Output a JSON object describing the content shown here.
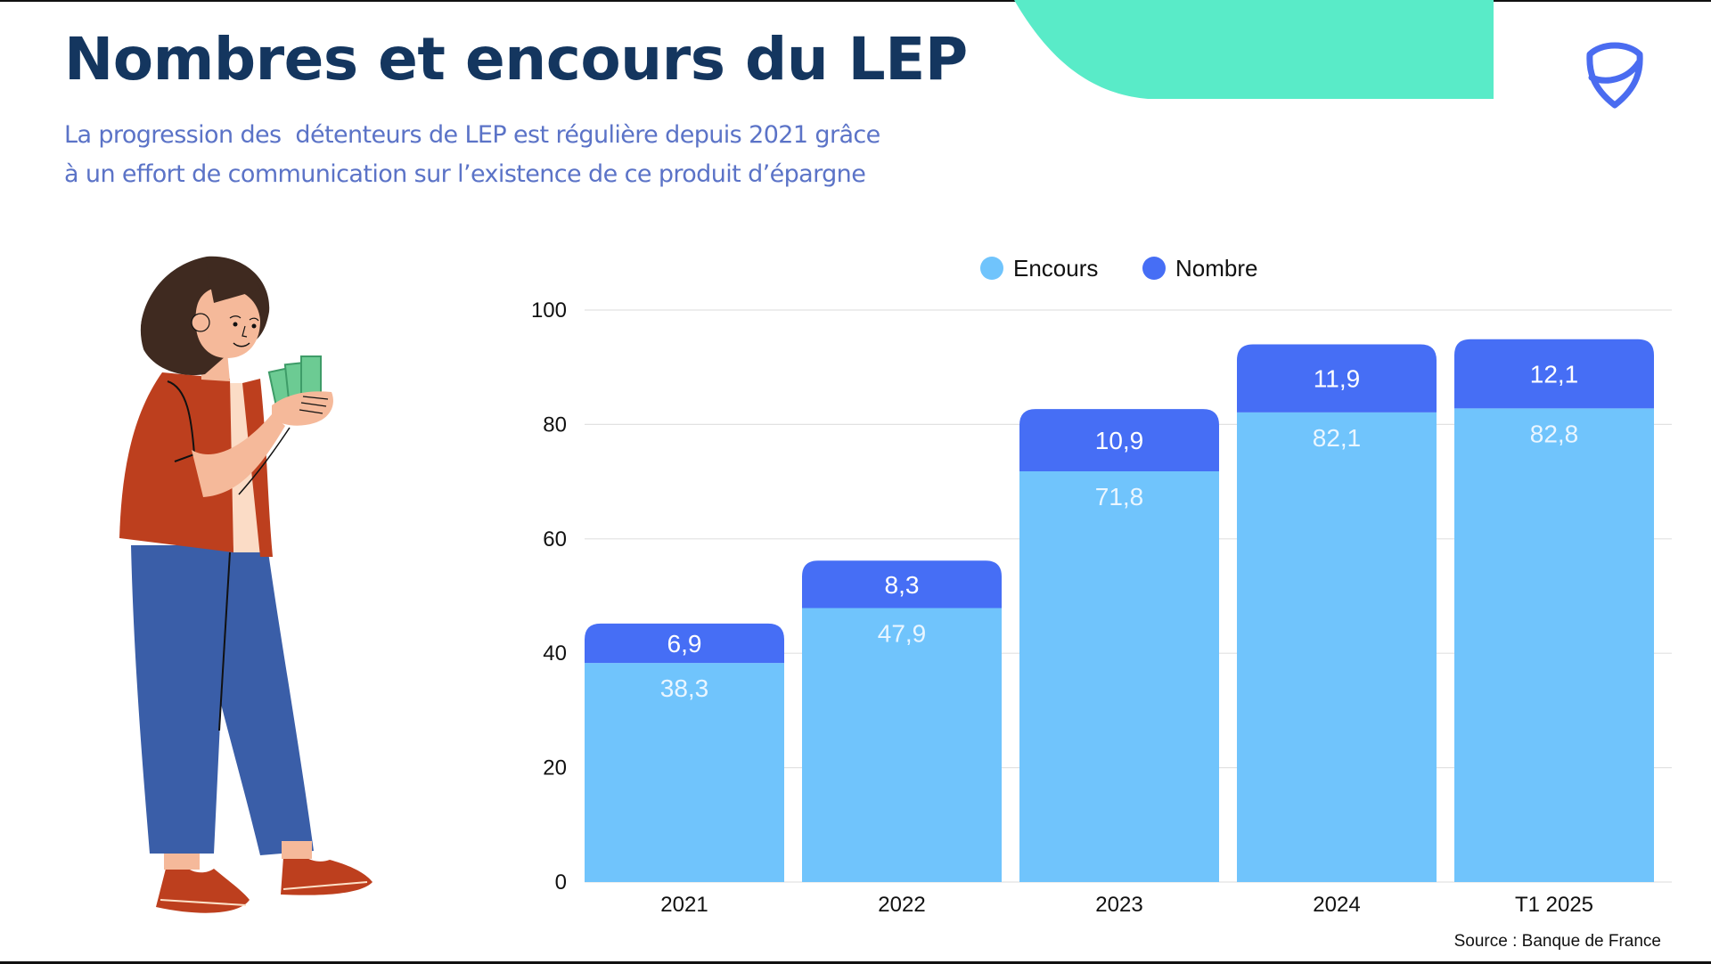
{
  "header": {
    "title": "Nombres et encours du LEP",
    "subtitle_lines": [
      "La progression des  détenteurs de LEP est régulière depuis 2021 grâce",
      "à un effort de communication sur l’existence de ce produit d’épargne"
    ],
    "logo_icon": "shield-icon"
  },
  "colors": {
    "title": "#14365f",
    "subtitle": "#5b73c7",
    "teal_accent": "#59ebc8",
    "encours": "#70c4fc",
    "nombre": "#466ef5",
    "grid": "#e2e2e2"
  },
  "illustration": {
    "description": "woman holding banknotes",
    "icon": "person-with-money-illustration"
  },
  "chart_data": {
    "type": "bar",
    "stacked": true,
    "title": "",
    "xlabel": "",
    "ylabel": "",
    "categories": [
      "2021",
      "2022",
      "2023",
      "2024",
      "T1 2025"
    ],
    "series": [
      {
        "name": "Encours",
        "values": [
          38.3,
          47.9,
          71.8,
          82.1,
          82.8
        ],
        "labels": [
          "38,3",
          "47,9",
          "71,8",
          "82,1",
          "82,8"
        ]
      },
      {
        "name": "Nombre",
        "values": [
          6.9,
          8.3,
          10.9,
          11.9,
          12.1
        ],
        "labels": [
          "6,9",
          "8,3",
          "10,9",
          "11,9",
          "12,1"
        ]
      }
    ],
    "ylim": [
      0,
      100
    ],
    "yticks": [
      0,
      20,
      40,
      60,
      80,
      100
    ],
    "grid": true,
    "legend": {
      "placement": "top-center",
      "entries": [
        "Encours",
        "Nombre"
      ]
    }
  },
  "footer": {
    "source": "Source : Banque de France"
  }
}
